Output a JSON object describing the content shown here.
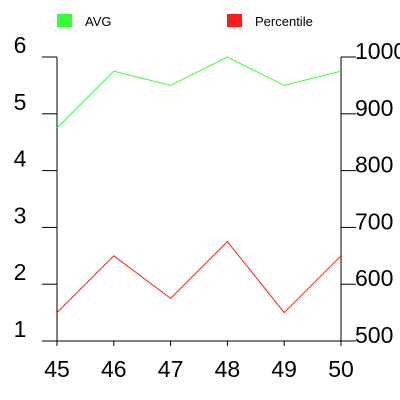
{
  "chart_data": {
    "type": "line",
    "x": [
      45,
      46,
      47,
      48,
      49,
      50
    ],
    "xlim": [
      45,
      50
    ],
    "x_ticks": [
      "45",
      "46",
      "47",
      "48",
      "49",
      "50"
    ],
    "grid": false,
    "legend_position": "top",
    "series": [
      {
        "name": "AVG",
        "axis": "left",
        "color": "#33ff33",
        "values": [
          4.75,
          5.75,
          5.5,
          6.0,
          5.5,
          5.75
        ]
      },
      {
        "name": "Percentile",
        "axis": "right",
        "color": "#ff1a1a",
        "values": [
          550,
          650,
          575,
          675,
          550,
          650
        ]
      }
    ],
    "y_left": {
      "lim": [
        1,
        6
      ],
      "ticks": [
        "1",
        "2",
        "3",
        "4",
        "5",
        "6"
      ]
    },
    "y_right": {
      "lim": [
        500,
        1000
      ],
      "ticks": [
        "500",
        "600",
        "700",
        "800",
        "900",
        "1000"
      ]
    }
  }
}
